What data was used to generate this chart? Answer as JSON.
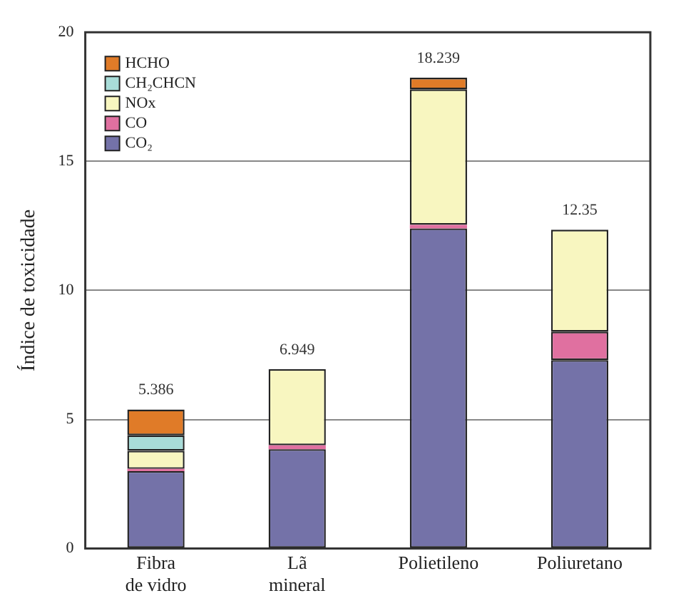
{
  "chart_data": {
    "type": "bar",
    "stacked": true,
    "ylabel": "Índice de toxicidade",
    "categories": [
      "Fibra\nde vidro",
      "Lã\nmineral",
      "Polietileno",
      "Poliuretano"
    ],
    "series": [
      {
        "name": "CO₂",
        "color": "#7472a8",
        "values": [
          3.0,
          3.85,
          12.4,
          7.3
        ]
      },
      {
        "name": "CO",
        "color": "#e070a0",
        "values": [
          0.086,
          0.15,
          0.139,
          1.1
        ]
      },
      {
        "name": "NOx",
        "color": "#f8f6c0",
        "values": [
          0.7,
          2.949,
          5.25,
          3.95
        ]
      },
      {
        "name": "CH₂CHCN",
        "color": "#a8dcd8",
        "values": [
          0.6,
          0,
          0,
          0
        ]
      },
      {
        "name": "HCHO",
        "color": "#e07b28",
        "values": [
          1.0,
          0,
          0.45,
          0
        ]
      }
    ],
    "totals": [
      "5.386",
      "6.949",
      "18.239",
      "12.35"
    ],
    "ylim": [
      0,
      20
    ],
    "yticks": [
      0,
      5,
      10,
      15,
      20
    ],
    "grid": "y",
    "legend": "top left"
  }
}
